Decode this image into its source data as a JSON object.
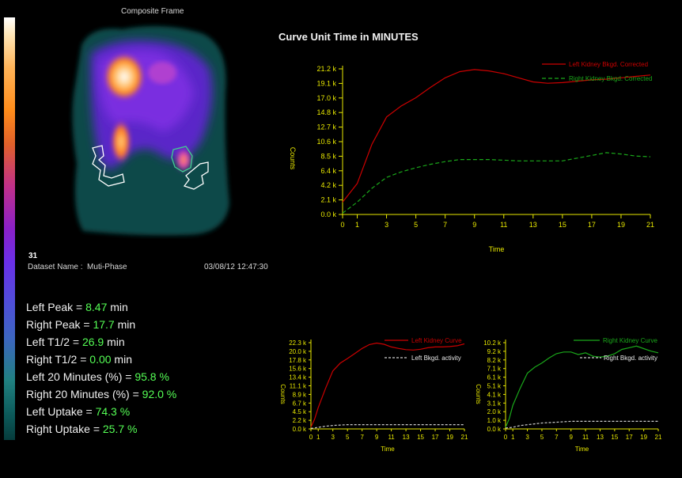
{
  "left_panel": {
    "composite_title": "Composite Frame",
    "frame_number": "31",
    "dataset_label": "Dataset Name :",
    "dataset_name": "Muti-Phase",
    "datetime": "03/08/12 12:47:30",
    "stats": [
      {
        "label": "Left Peak = ",
        "value": "8.47",
        "unit": " min"
      },
      {
        "label": "Right Peak = ",
        "value": "17.7",
        "unit": " min"
      },
      {
        "label": "Left T1/2 = ",
        "value": "26.9",
        "unit": " min"
      },
      {
        "label": "Right T1/2 = ",
        "value": "0.00",
        "unit": " min"
      },
      {
        "label": "Left 20 Minutes (%) = ",
        "value": "95.8",
        "unit": " %"
      },
      {
        "label": "Right 20 Minutes (%) = ",
        "value": "92.0",
        "unit": " %"
      },
      {
        "label": "Left Uptake = ",
        "value": "74.3",
        "unit": " %"
      },
      {
        "label": "Right Uptake = ",
        "value": "25.7",
        "unit": " %"
      }
    ]
  },
  "main_title": "Curve Unit Time in MINUTES",
  "colors": {
    "left": "#cc0000",
    "right": "#1aa81a",
    "bkgd": "#cccccc",
    "axis": "#e8e800"
  },
  "chart_data": [
    {
      "type": "line",
      "xlabel": "Time",
      "ylabel": "Counts",
      "xticks": [
        "0",
        "1",
        "3",
        "5",
        "7",
        "9",
        "11",
        "13",
        "15",
        "17",
        "19",
        "21"
      ],
      "yticks": [
        "0.0 k",
        "2.1 k",
        "4.2 k",
        "6.4 k",
        "8.5 k",
        "10.6 k",
        "12.7 k",
        "14.8 k",
        "17.0 k",
        "19.1 k",
        "21.2 k"
      ],
      "xlim": [
        0,
        21
      ],
      "ylim": [
        0,
        21.2
      ],
      "series": [
        {
          "name": "Left Kidney Bkgd. Corrected",
          "color": "#cc0000",
          "dash": "",
          "x": [
            0,
            1,
            2,
            3,
            4,
            5,
            6,
            7,
            8,
            9,
            10,
            11,
            12,
            13,
            14,
            15,
            16,
            17,
            18,
            19,
            20,
            21
          ],
          "y": [
            1.8,
            4.5,
            10.2,
            14.2,
            15.8,
            17.0,
            18.5,
            19.9,
            20.8,
            21.1,
            20.9,
            20.5,
            19.9,
            19.3,
            19.1,
            19.2,
            19.4,
            19.6,
            19.7,
            19.9,
            20.1,
            20.3
          ]
        },
        {
          "name": "Right Kidney Bkgd. Corrected",
          "color": "#1aa81a",
          "dash": "5,3",
          "x": [
            0,
            1,
            2,
            3,
            4,
            5,
            6,
            7,
            8,
            9,
            10,
            11,
            12,
            13,
            14,
            15,
            16,
            17,
            18,
            19,
            20,
            21
          ],
          "y": [
            0.2,
            1.8,
            3.8,
            5.4,
            6.2,
            6.8,
            7.3,
            7.7,
            8.0,
            8.0,
            8.0,
            7.9,
            7.8,
            7.8,
            7.8,
            7.8,
            8.2,
            8.6,
            9.0,
            8.8,
            8.5,
            8.4
          ]
        }
      ],
      "legend": "top-right"
    },
    {
      "type": "line",
      "xlabel": "Time",
      "ylabel": "Counts",
      "xticks": [
        "0",
        "1",
        "3",
        "5",
        "7",
        "9",
        "11",
        "13",
        "15",
        "17",
        "19",
        "21"
      ],
      "yticks": [
        "0.0 k",
        "2.2 k",
        "4.5 k",
        "6.7 k",
        "8.9 k",
        "11.1 k",
        "13.4 k",
        "15.6 k",
        "17.8 k",
        "20.0 k",
        "22.3 k"
      ],
      "xlim": [
        0,
        21
      ],
      "ylim": [
        0,
        22.3
      ],
      "series": [
        {
          "name": "Left Kidney Curve",
          "color": "#cc0000",
          "dash": "",
          "x": [
            0,
            0.5,
            1,
            2,
            3,
            4,
            5,
            6,
            7,
            8,
            9,
            10,
            11,
            12,
            13,
            14,
            15,
            16,
            17,
            18,
            19,
            20,
            21
          ],
          "y": [
            0.5,
            2.5,
            5.5,
            10.5,
            15.0,
            17.0,
            18.2,
            19.5,
            20.8,
            21.8,
            22.2,
            21.9,
            21.2,
            20.8,
            20.5,
            20.4,
            20.6,
            21.0,
            21.2,
            21.2,
            21.3,
            21.5,
            22.0
          ]
        },
        {
          "name": "Left Bkgd. activity",
          "color": "#cccccc",
          "dash": "3,2",
          "x": [
            0,
            1,
            2,
            3,
            4,
            5,
            6,
            7,
            8,
            9,
            10,
            11,
            12,
            13,
            14,
            15,
            16,
            17,
            18,
            19,
            20,
            21
          ],
          "y": [
            0.1,
            0.4,
            0.7,
            0.9,
            1.0,
            1.1,
            1.1,
            1.1,
            1.1,
            1.1,
            1.1,
            1.1,
            1.1,
            1.1,
            1.1,
            1.1,
            1.1,
            1.1,
            1.1,
            1.1,
            1.1,
            1.1
          ]
        }
      ],
      "legend": "top-right"
    },
    {
      "type": "line",
      "xlabel": "Time",
      "ylabel": "Counts",
      "xticks": [
        "0",
        "1",
        "3",
        "5",
        "7",
        "9",
        "11",
        "13",
        "15",
        "17",
        "19",
        "21"
      ],
      "yticks": [
        "0.0 k",
        "1.0 k",
        "2.0 k",
        "3.1 k",
        "4.1 k",
        "5.1 k",
        "6.1 k",
        "7.1 k",
        "8.2 k",
        "9.2 k",
        "10.2 k"
      ],
      "xlim": [
        0,
        21
      ],
      "ylim": [
        0,
        10.2
      ],
      "series": [
        {
          "name": "Right Kidney Curve",
          "color": "#1aa81a",
          "dash": "",
          "x": [
            0,
            0.5,
            1,
            2,
            3,
            4,
            5,
            6,
            7,
            8,
            9,
            10,
            11,
            12,
            13,
            14,
            15,
            16,
            17,
            18,
            19,
            20,
            21
          ],
          "y": [
            0.2,
            1.2,
            2.8,
            4.8,
            6.6,
            7.3,
            7.8,
            8.4,
            8.9,
            9.1,
            9.1,
            8.8,
            9.0,
            8.6,
            8.5,
            8.6,
            8.9,
            9.4,
            9.6,
            9.8,
            9.5,
            9.2,
            9.0
          ]
        },
        {
          "name": "Right Bkgd. activity",
          "color": "#cccccc",
          "dash": "3,2",
          "x": [
            0,
            1,
            2,
            3,
            4,
            5,
            6,
            7,
            8,
            9,
            10,
            11,
            12,
            13,
            14,
            15,
            16,
            17,
            18,
            19,
            20,
            21
          ],
          "y": [
            0.1,
            0.2,
            0.4,
            0.5,
            0.6,
            0.7,
            0.75,
            0.8,
            0.85,
            0.9,
            0.9,
            0.9,
            0.9,
            0.9,
            0.9,
            0.9,
            0.9,
            0.9,
            0.9,
            0.9,
            0.9,
            0.9
          ]
        }
      ],
      "legend": "top-right"
    }
  ]
}
